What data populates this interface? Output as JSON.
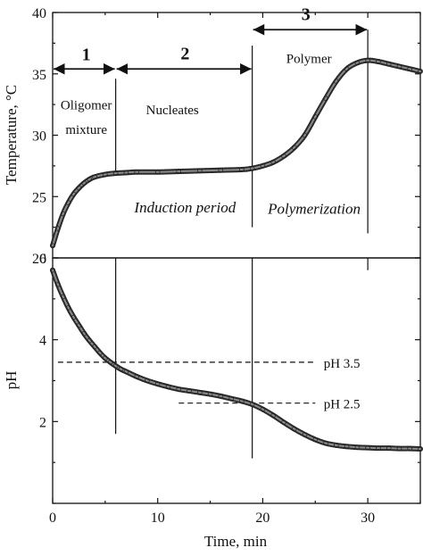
{
  "chart_data": [
    {
      "type": "scatter",
      "xlim": [
        0,
        35
      ],
      "ylim": [
        20,
        40
      ],
      "ylabel": "Temperature, °C",
      "xlabel": "",
      "ytick_labels": [
        "20",
        "25",
        "30",
        "35",
        "40"
      ],
      "yticks": [
        20,
        25,
        30,
        35,
        40
      ],
      "series": [
        {
          "x": [
            0,
            0.5,
            1,
            1.5,
            2,
            2.5,
            3,
            3.5,
            4,
            5,
            6,
            7,
            8,
            10,
            12,
            14,
            16,
            18,
            19,
            20,
            21,
            22,
            23,
            24,
            25,
            26,
            27,
            28,
            29,
            30,
            31,
            32,
            33,
            34,
            35
          ],
          "y": [
            21.0,
            22.4,
            23.6,
            24.5,
            25.2,
            25.7,
            26.1,
            26.4,
            26.6,
            26.8,
            26.9,
            26.95,
            27.0,
            27.0,
            27.05,
            27.1,
            27.15,
            27.2,
            27.3,
            27.5,
            27.8,
            28.3,
            29.0,
            30.0,
            31.5,
            33.0,
            34.4,
            35.4,
            35.9,
            36.1,
            36.0,
            35.8,
            35.6,
            35.4,
            35.2
          ]
        }
      ],
      "vlines": [
        {
          "x": 6,
          "y0": 26.7,
          "y1": 34.6
        },
        {
          "x": 19,
          "y0": 22.5,
          "y1": 37.3
        },
        {
          "x": 30,
          "y0": 22.0,
          "y1": 38.6
        }
      ],
      "arrows": [
        {
          "x0": 0,
          "x1": 6,
          "y": 35.4
        },
        {
          "x0": 6,
          "x1": 19,
          "y": 35.4
        },
        {
          "x0": 19,
          "x1": 30,
          "y": 38.6
        }
      ],
      "annotations": [
        {
          "text": "1",
          "x": 3.2,
          "y": 36.1,
          "style": "bold"
        },
        {
          "text": "2",
          "x": 12.6,
          "y": 36.2,
          "style": "bold"
        },
        {
          "text": "3",
          "x": 24.1,
          "y": 39.4,
          "style": "bold"
        },
        {
          "text": "Oligomer",
          "x": 3.2,
          "y": 32.1,
          "style": "normal"
        },
        {
          "text": "mixture",
          "x": 3.2,
          "y": 30.1,
          "style": "normal"
        },
        {
          "text": "Nucleates",
          "x": 11.4,
          "y": 31.7,
          "style": "normal"
        },
        {
          "text": "Polymer",
          "x": 24.4,
          "y": 35.9,
          "style": "normal"
        },
        {
          "text": "Induction period",
          "x": 12.6,
          "y": 23.7,
          "style": "italic"
        },
        {
          "text": "Polymerization",
          "x": 24.9,
          "y": 23.6,
          "style": "italic"
        }
      ]
    },
    {
      "type": "scatter",
      "xlim": [
        0,
        35
      ],
      "ylim": [
        0,
        6
      ],
      "xlabel": "Time, min",
      "ylabel": "pH",
      "ytick_labels": [
        "2",
        "4",
        "6"
      ],
      "yticks": [
        2,
        4,
        6
      ],
      "xtick_labels": [
        "0",
        "10",
        "20",
        "30"
      ],
      "xticks": [
        0,
        10,
        20,
        30
      ],
      "series": [
        {
          "x": [
            0,
            0.5,
            1,
            1.5,
            2,
            2.5,
            3,
            3.5,
            4,
            4.5,
            5,
            5.5,
            6,
            6.5,
            7,
            8,
            9,
            10,
            11,
            12,
            13,
            14,
            15,
            16,
            17,
            18,
            19,
            20,
            21,
            22,
            23,
            24,
            25,
            26,
            27,
            28,
            29,
            30,
            31,
            32,
            33,
            34,
            35
          ],
          "y": [
            5.7,
            5.35,
            5.05,
            4.78,
            4.55,
            4.35,
            4.15,
            3.98,
            3.83,
            3.68,
            3.55,
            3.45,
            3.36,
            3.28,
            3.22,
            3.1,
            3.0,
            2.92,
            2.85,
            2.79,
            2.75,
            2.71,
            2.67,
            2.62,
            2.56,
            2.5,
            2.42,
            2.3,
            2.15,
            1.98,
            1.82,
            1.68,
            1.56,
            1.47,
            1.42,
            1.39,
            1.37,
            1.36,
            1.35,
            1.35,
            1.34,
            1.34,
            1.33
          ]
        }
      ],
      "vlines": [
        {
          "x": 6,
          "y0": 1.7,
          "y1": 6.0
        },
        {
          "x": 19,
          "y0": 1.1,
          "y1": 6.0
        },
        {
          "x": 30,
          "y0": 5.7,
          "y1": 6.0
        }
      ],
      "hlines": [
        {
          "y": 3.45,
          "x0": 0.5,
          "x1": 25
        },
        {
          "y": 2.45,
          "x0": 12,
          "x1": 25
        }
      ],
      "annotations": [
        {
          "text": "pH 3.5",
          "x": 25.8,
          "y": 3.45,
          "style": "normal"
        },
        {
          "text": "pH 2.5",
          "x": 25.8,
          "y": 2.45,
          "style": "normal"
        }
      ]
    }
  ]
}
